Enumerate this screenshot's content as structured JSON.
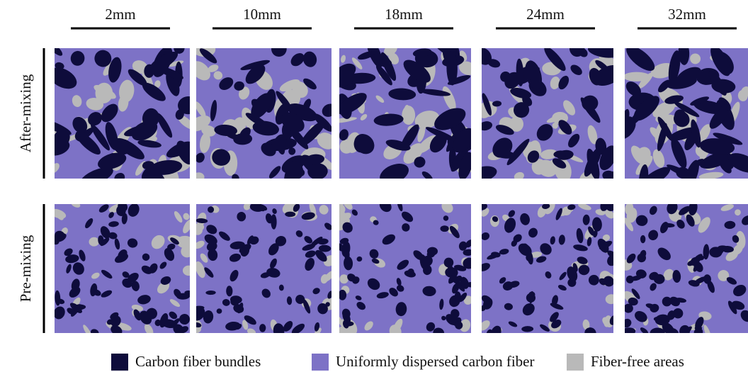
{
  "columns": [
    {
      "label": "2mm"
    },
    {
      "label": "10mm"
    },
    {
      "label": "18mm"
    },
    {
      "label": "24mm"
    },
    {
      "label": "32mm"
    }
  ],
  "rows": [
    {
      "label": "After-mixing"
    },
    {
      "label": "Pre-mixing"
    }
  ],
  "legend": [
    {
      "label": "Carbon fiber bundles",
      "color": "#0e0c3b"
    },
    {
      "label": "Uniformly dispersed carbon fiber",
      "color": "#7d72c6"
    },
    {
      "label": "Fiber-free areas",
      "color": "#b9b9b9"
    }
  ]
}
